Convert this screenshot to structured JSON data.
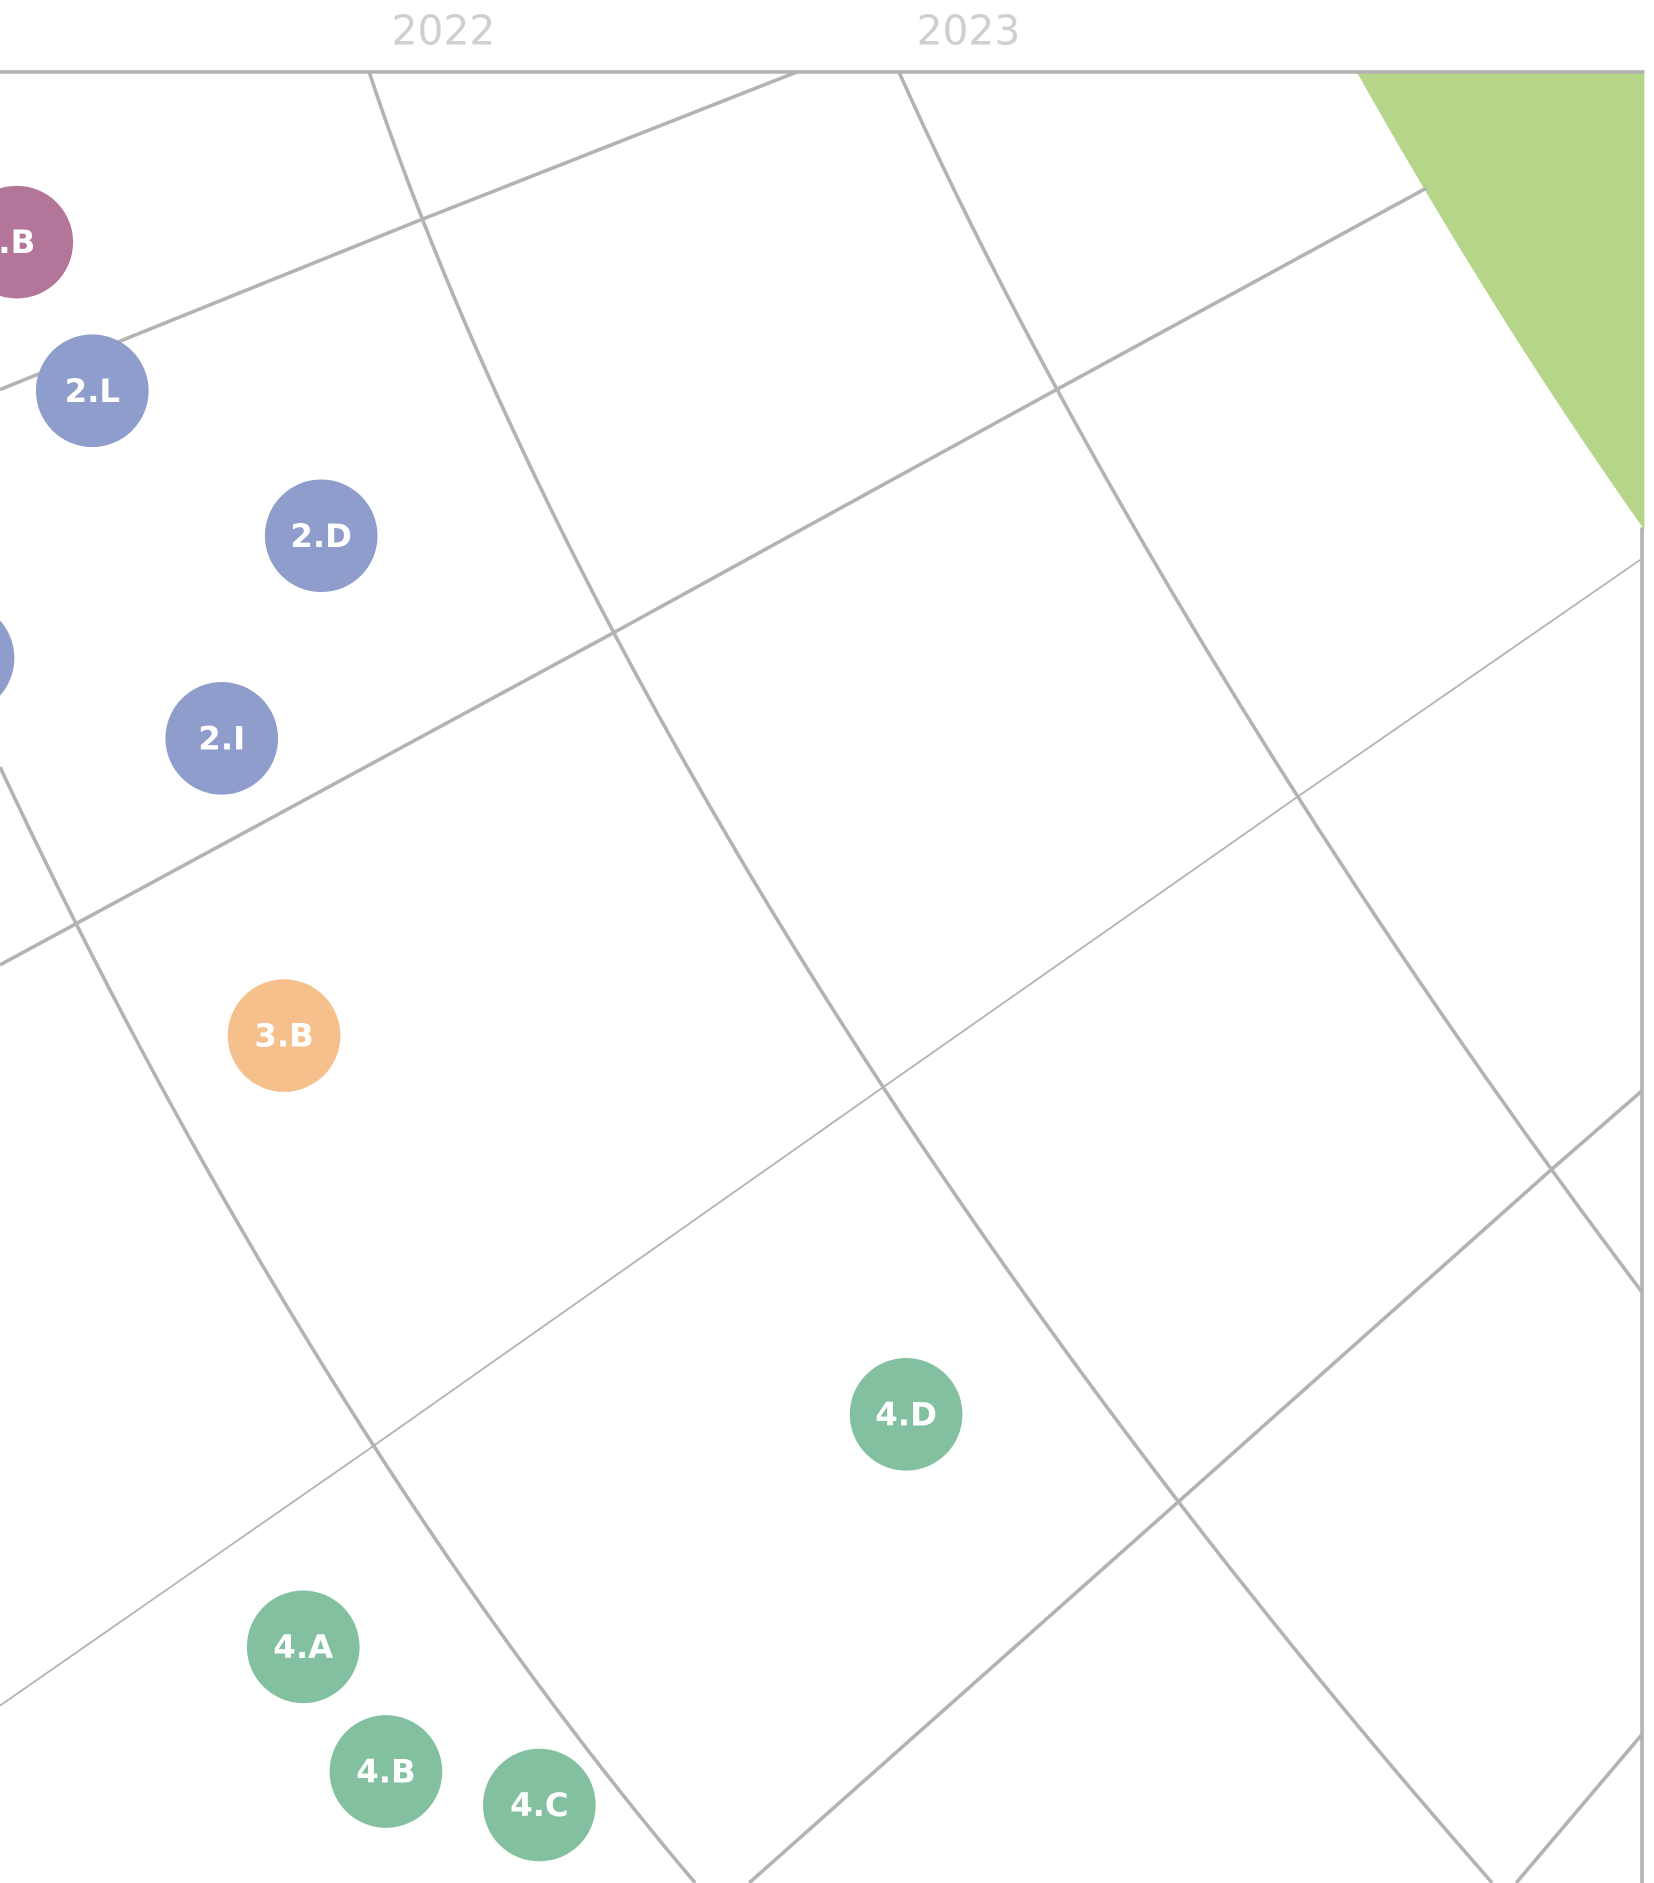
{
  "header": {
    "years": [
      "2022",
      "2023"
    ]
  },
  "nodes": [
    {
      "label": ".B",
      "color": "#b3769a"
    },
    {
      "label": "2.L",
      "color": "#8e9dcb"
    },
    {
      "label": "2.D",
      "color": "#8e9dcb"
    },
    {
      "color": "#8e9dcb"
    },
    {
      "label": "2.I",
      "color": "#8e9dcb"
    },
    {
      "label": "3.B",
      "color": "#f6c08d"
    },
    {
      "label": "4.D",
      "color": "#82c0a0"
    },
    {
      "label": "4.A",
      "color": "#82c0a0"
    },
    {
      "label": "4.B",
      "color": "#82c0a0"
    },
    {
      "label": "4.C",
      "color": "#82c0a0"
    }
  ]
}
